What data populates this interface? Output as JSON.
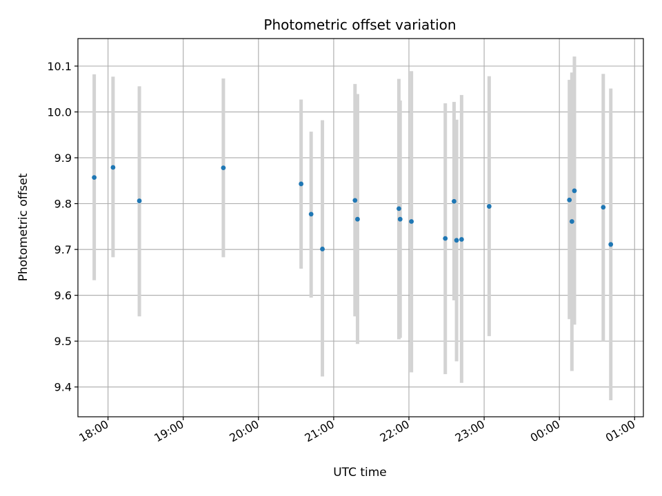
{
  "chart_data": {
    "type": "scatter",
    "title": "Photometric offset variation",
    "xlabel": "UTC time",
    "ylabel": "Photometric offset",
    "x_ticks": [
      "18:00",
      "19:00",
      "20:00",
      "21:00",
      "22:00",
      "23:00",
      "00:00",
      "01:00"
    ],
    "x_tick_hours": [
      18,
      19,
      20,
      21,
      22,
      23,
      24,
      25
    ],
    "xlim": [
      "17:36",
      "01:07"
    ],
    "ylim": [
      9.335,
      10.16
    ],
    "y_ticks": [
      9.4,
      9.5,
      9.6,
      9.7,
      9.8,
      9.9,
      10.0,
      10.1
    ],
    "grid": true,
    "marker_color": "#1f77b4",
    "errorbar_color": "#d3d3d3",
    "points": [
      {
        "t": "17:49",
        "y": 9.857,
        "lo": 9.633,
        "hi": 10.082
      },
      {
        "t": "18:04",
        "y": 9.879,
        "lo": 9.683,
        "hi": 10.077
      },
      {
        "t": "18:25",
        "y": 9.806,
        "lo": 9.554,
        "hi": 10.056
      },
      {
        "t": "19:32",
        "y": 9.878,
        "lo": 9.683,
        "hi": 10.073
      },
      {
        "t": "20:34",
        "y": 9.843,
        "lo": 9.658,
        "hi": 10.027
      },
      {
        "t": "20:42",
        "y": 9.777,
        "lo": 9.595,
        "hi": 9.957
      },
      {
        "t": "20:51",
        "y": 9.701,
        "lo": 9.423,
        "hi": 9.982
      },
      {
        "t": "21:17",
        "y": 9.807,
        "lo": 9.554,
        "hi": 10.061
      },
      {
        "t": "21:19",
        "y": 9.766,
        "lo": 9.494,
        "hi": 10.039
      },
      {
        "t": "21:52",
        "y": 9.789,
        "lo": 9.504,
        "hi": 10.072
      },
      {
        "t": "21:53",
        "y": 9.766,
        "lo": 9.507,
        "hi": 10.025
      },
      {
        "t": "22:02",
        "y": 9.761,
        "lo": 9.432,
        "hi": 10.089
      },
      {
        "t": "22:29",
        "y": 9.724,
        "lo": 9.428,
        "hi": 10.019
      },
      {
        "t": "22:36",
        "y": 9.805,
        "lo": 9.589,
        "hi": 10.022
      },
      {
        "t": "22:38",
        "y": 9.72,
        "lo": 9.456,
        "hi": 9.983
      },
      {
        "t": "22:42",
        "y": 9.722,
        "lo": 9.409,
        "hi": 10.037
      },
      {
        "t": "23:04",
        "y": 9.794,
        "lo": 9.511,
        "hi": 10.078
      },
      {
        "t": "00:08",
        "y": 9.808,
        "lo": 9.548,
        "hi": 10.07
      },
      {
        "t": "00:10",
        "y": 9.761,
        "lo": 9.435,
        "hi": 10.086
      },
      {
        "t": "00:12",
        "y": 9.828,
        "lo": 9.536,
        "hi": 10.121
      },
      {
        "t": "00:35",
        "y": 9.792,
        "lo": 9.5,
        "hi": 10.083
      },
      {
        "t": "00:41",
        "y": 9.711,
        "lo": 9.371,
        "hi": 10.051
      }
    ]
  }
}
